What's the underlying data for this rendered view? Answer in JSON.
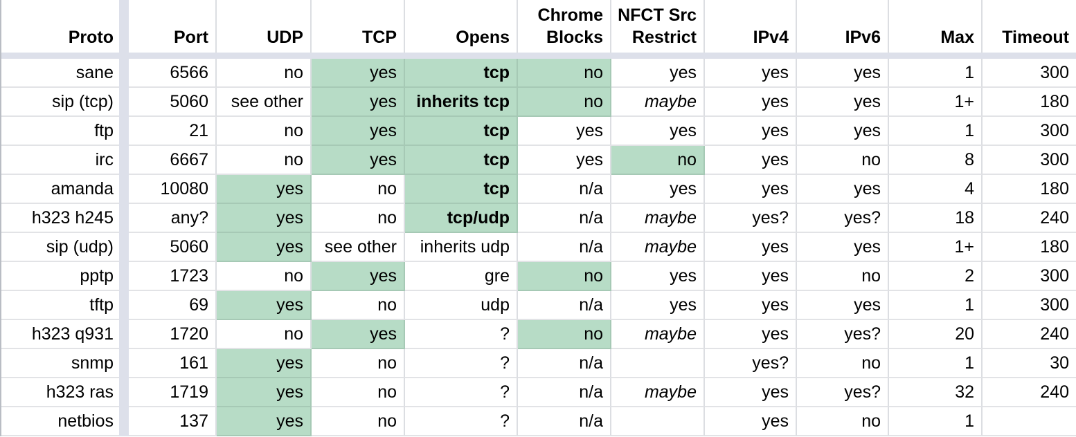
{
  "colors": {
    "highlight": "#b7dcc6",
    "highlight_border": "#a6c9b5",
    "band": "#dde0ea",
    "gridline": "#dcdee2",
    "gridline_h": "#e2e3e6",
    "left_edge": "#b9bdc4",
    "text": "#000000",
    "cell_background": "#ffffff"
  },
  "table": {
    "columns": [
      {
        "key": "proto",
        "label": "Proto"
      },
      {
        "key": "port",
        "label": "Port"
      },
      {
        "key": "udp",
        "label": "UDP"
      },
      {
        "key": "tcp",
        "label": "TCP"
      },
      {
        "key": "opens",
        "label": "Opens"
      },
      {
        "key": "chrome_blocks",
        "label": "Chrome Blocks"
      },
      {
        "key": "nfct_src_restrict",
        "label": "NFCT Src Restrict"
      },
      {
        "key": "ipv4",
        "label": "IPv4"
      },
      {
        "key": "ipv6",
        "label": "IPv6"
      },
      {
        "key": "max",
        "label": "Max"
      },
      {
        "key": "timeout",
        "label": "Timeout"
      }
    ],
    "rows": [
      {
        "cells": {
          "proto": "sane",
          "port": "6566",
          "udp": "no",
          "tcp": "yes",
          "opens": "tcp",
          "chrome_blocks": "no",
          "nfct_src_restrict": "yes",
          "ipv4": "yes",
          "ipv6": "yes",
          "max": "1",
          "timeout": "300"
        },
        "green": [
          "tcp",
          "opens",
          "chrome_blocks"
        ],
        "bold": [
          "opens"
        ],
        "italic": []
      },
      {
        "cells": {
          "proto": "sip (tcp)",
          "port": "5060",
          "udp": "see other",
          "tcp": "yes",
          "opens": "inherits tcp",
          "chrome_blocks": "no",
          "nfct_src_restrict": "maybe",
          "ipv4": "yes",
          "ipv6": "yes",
          "max": "1+",
          "timeout": "180"
        },
        "green": [
          "tcp",
          "opens",
          "chrome_blocks"
        ],
        "bold": [
          "opens"
        ],
        "italic": [
          "nfct_src_restrict"
        ]
      },
      {
        "cells": {
          "proto": "ftp",
          "port": "21",
          "udp": "no",
          "tcp": "yes",
          "opens": "tcp",
          "chrome_blocks": "yes",
          "nfct_src_restrict": "yes",
          "ipv4": "yes",
          "ipv6": "yes",
          "max": "1",
          "timeout": "300"
        },
        "green": [
          "tcp",
          "opens"
        ],
        "bold": [
          "opens"
        ],
        "italic": []
      },
      {
        "cells": {
          "proto": "irc",
          "port": "6667",
          "udp": "no",
          "tcp": "yes",
          "opens": "tcp",
          "chrome_blocks": "yes",
          "nfct_src_restrict": "no",
          "ipv4": "yes",
          "ipv6": "no",
          "max": "8",
          "timeout": "300"
        },
        "green": [
          "tcp",
          "opens",
          "nfct_src_restrict"
        ],
        "bold": [
          "opens"
        ],
        "italic": []
      },
      {
        "cells": {
          "proto": "amanda",
          "port": "10080",
          "udp": "yes",
          "tcp": "no",
          "opens": "tcp",
          "chrome_blocks": "n/a",
          "nfct_src_restrict": "yes",
          "ipv4": "yes",
          "ipv6": "yes",
          "max": "4",
          "timeout": "180"
        },
        "green": [
          "udp",
          "opens"
        ],
        "bold": [
          "opens"
        ],
        "italic": []
      },
      {
        "cells": {
          "proto": "h323 h245",
          "port": "any?",
          "udp": "yes",
          "tcp": "no",
          "opens": "tcp/udp",
          "chrome_blocks": "n/a",
          "nfct_src_restrict": "maybe",
          "ipv4": "yes?",
          "ipv6": "yes?",
          "max": "18",
          "timeout": "240"
        },
        "green": [
          "udp",
          "opens"
        ],
        "bold": [
          "opens"
        ],
        "italic": [
          "nfct_src_restrict"
        ]
      },
      {
        "cells": {
          "proto": "sip (udp)",
          "port": "5060",
          "udp": "yes",
          "tcp": "see other",
          "opens": "inherits udp",
          "chrome_blocks": "n/a",
          "nfct_src_restrict": "maybe",
          "ipv4": "yes",
          "ipv6": "yes",
          "max": "1+",
          "timeout": "180"
        },
        "green": [
          "udp"
        ],
        "bold": [],
        "italic": [
          "nfct_src_restrict"
        ]
      },
      {
        "cells": {
          "proto": "pptp",
          "port": "1723",
          "udp": "no",
          "tcp": "yes",
          "opens": "gre",
          "chrome_blocks": "no",
          "nfct_src_restrict": "yes",
          "ipv4": "yes",
          "ipv6": "no",
          "max": "2",
          "timeout": "300"
        },
        "green": [
          "tcp",
          "chrome_blocks"
        ],
        "bold": [],
        "italic": []
      },
      {
        "cells": {
          "proto": "tftp",
          "port": "69",
          "udp": "yes",
          "tcp": "no",
          "opens": "udp",
          "chrome_blocks": "n/a",
          "nfct_src_restrict": "yes",
          "ipv4": "yes",
          "ipv6": "yes",
          "max": "1",
          "timeout": "300"
        },
        "green": [
          "udp"
        ],
        "bold": [],
        "italic": []
      },
      {
        "cells": {
          "proto": "h323 q931",
          "port": "1720",
          "udp": "no",
          "tcp": "yes",
          "opens": "?",
          "chrome_blocks": "no",
          "nfct_src_restrict": "maybe",
          "ipv4": "yes",
          "ipv6": "yes?",
          "max": "20",
          "timeout": "240"
        },
        "green": [
          "tcp",
          "chrome_blocks"
        ],
        "bold": [],
        "italic": [
          "nfct_src_restrict"
        ]
      },
      {
        "cells": {
          "proto": "snmp",
          "port": "161",
          "udp": "yes",
          "tcp": "no",
          "opens": "?",
          "chrome_blocks": "n/a",
          "nfct_src_restrict": "",
          "ipv4": "yes?",
          "ipv6": "no",
          "max": "1",
          "timeout": "30"
        },
        "green": [
          "udp"
        ],
        "bold": [],
        "italic": []
      },
      {
        "cells": {
          "proto": "h323 ras",
          "port": "1719",
          "udp": "yes",
          "tcp": "no",
          "opens": "?",
          "chrome_blocks": "n/a",
          "nfct_src_restrict": "maybe",
          "ipv4": "yes",
          "ipv6": "yes?",
          "max": "32",
          "timeout": "240"
        },
        "green": [
          "udp"
        ],
        "bold": [],
        "italic": [
          "nfct_src_restrict"
        ]
      },
      {
        "cells": {
          "proto": "netbios",
          "port": "137",
          "udp": "yes",
          "tcp": "no",
          "opens": "?",
          "chrome_blocks": "n/a",
          "nfct_src_restrict": "",
          "ipv4": "yes",
          "ipv6": "no",
          "max": "1",
          "timeout": ""
        },
        "green": [
          "udp"
        ],
        "bold": [],
        "italic": []
      }
    ]
  }
}
